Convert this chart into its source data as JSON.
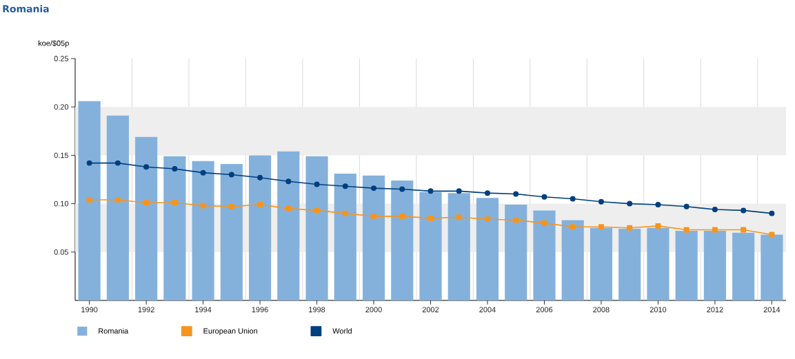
{
  "chart_data": {
    "type": "bar",
    "title": "Romania",
    "ylabel": "koe/$05p",
    "x": [
      1990,
      1991,
      1992,
      1993,
      1994,
      1995,
      1996,
      1997,
      1998,
      1999,
      2000,
      2001,
      2002,
      2003,
      2004,
      2005,
      2006,
      2007,
      2008,
      2009,
      2010,
      2011,
      2012,
      2013,
      2014
    ],
    "series": [
      {
        "name": "Romania",
        "color": "#84b1dc",
        "values": [
          0.206,
          0.191,
          0.169,
          0.149,
          0.144,
          0.141,
          0.15,
          0.154,
          0.149,
          0.131,
          0.129,
          0.124,
          0.112,
          0.111,
          0.106,
          0.099,
          0.093,
          0.083,
          0.075,
          0.074,
          0.075,
          0.072,
          0.072,
          0.07,
          0.068
        ]
      },
      {
        "name": "European Union",
        "type": "line",
        "color": "#f7941d",
        "marker": "square",
        "values": [
          0.104,
          0.104,
          0.101,
          0.101,
          0.098,
          0.097,
          0.099,
          0.095,
          0.093,
          0.09,
          0.087,
          0.087,
          0.085,
          0.086,
          0.084,
          0.083,
          0.08,
          0.076,
          0.076,
          0.075,
          0.077,
          0.073,
          0.073,
          0.073,
          0.068
        ]
      },
      {
        "name": "World",
        "type": "line",
        "color": "#003f7f",
        "marker": "circle",
        "values": [
          0.142,
          0.142,
          0.138,
          0.136,
          0.132,
          0.13,
          0.127,
          0.123,
          0.12,
          0.118,
          0.116,
          0.115,
          0.113,
          0.113,
          0.111,
          0.11,
          0.107,
          0.105,
          0.102,
          0.1,
          0.099,
          0.097,
          0.094,
          0.093,
          0.09
        ]
      }
    ],
    "xlim": [
      1989.5,
      2014.5
    ],
    "xticks": [
      1990,
      1992,
      1994,
      1996,
      1998,
      2000,
      2002,
      2004,
      2006,
      2008,
      2010,
      2012,
      2014
    ],
    "ylim": [
      0,
      0.25
    ],
    "yticks": [
      0.05,
      {
        "value": 0.1,
        "label": "0.10"
      },
      0.15,
      {
        "value": 0.2,
        "label": "0.20"
      },
      0.25
    ],
    "bands": [
      {
        "axis": "y",
        "from": 0.05,
        "to": 0.1,
        "color": "#eeeeee"
      },
      {
        "axis": "y",
        "from": 0.15,
        "to": 0.2,
        "color": "#eeeeee"
      }
    ],
    "grid": "x",
    "legend": "bottom"
  }
}
